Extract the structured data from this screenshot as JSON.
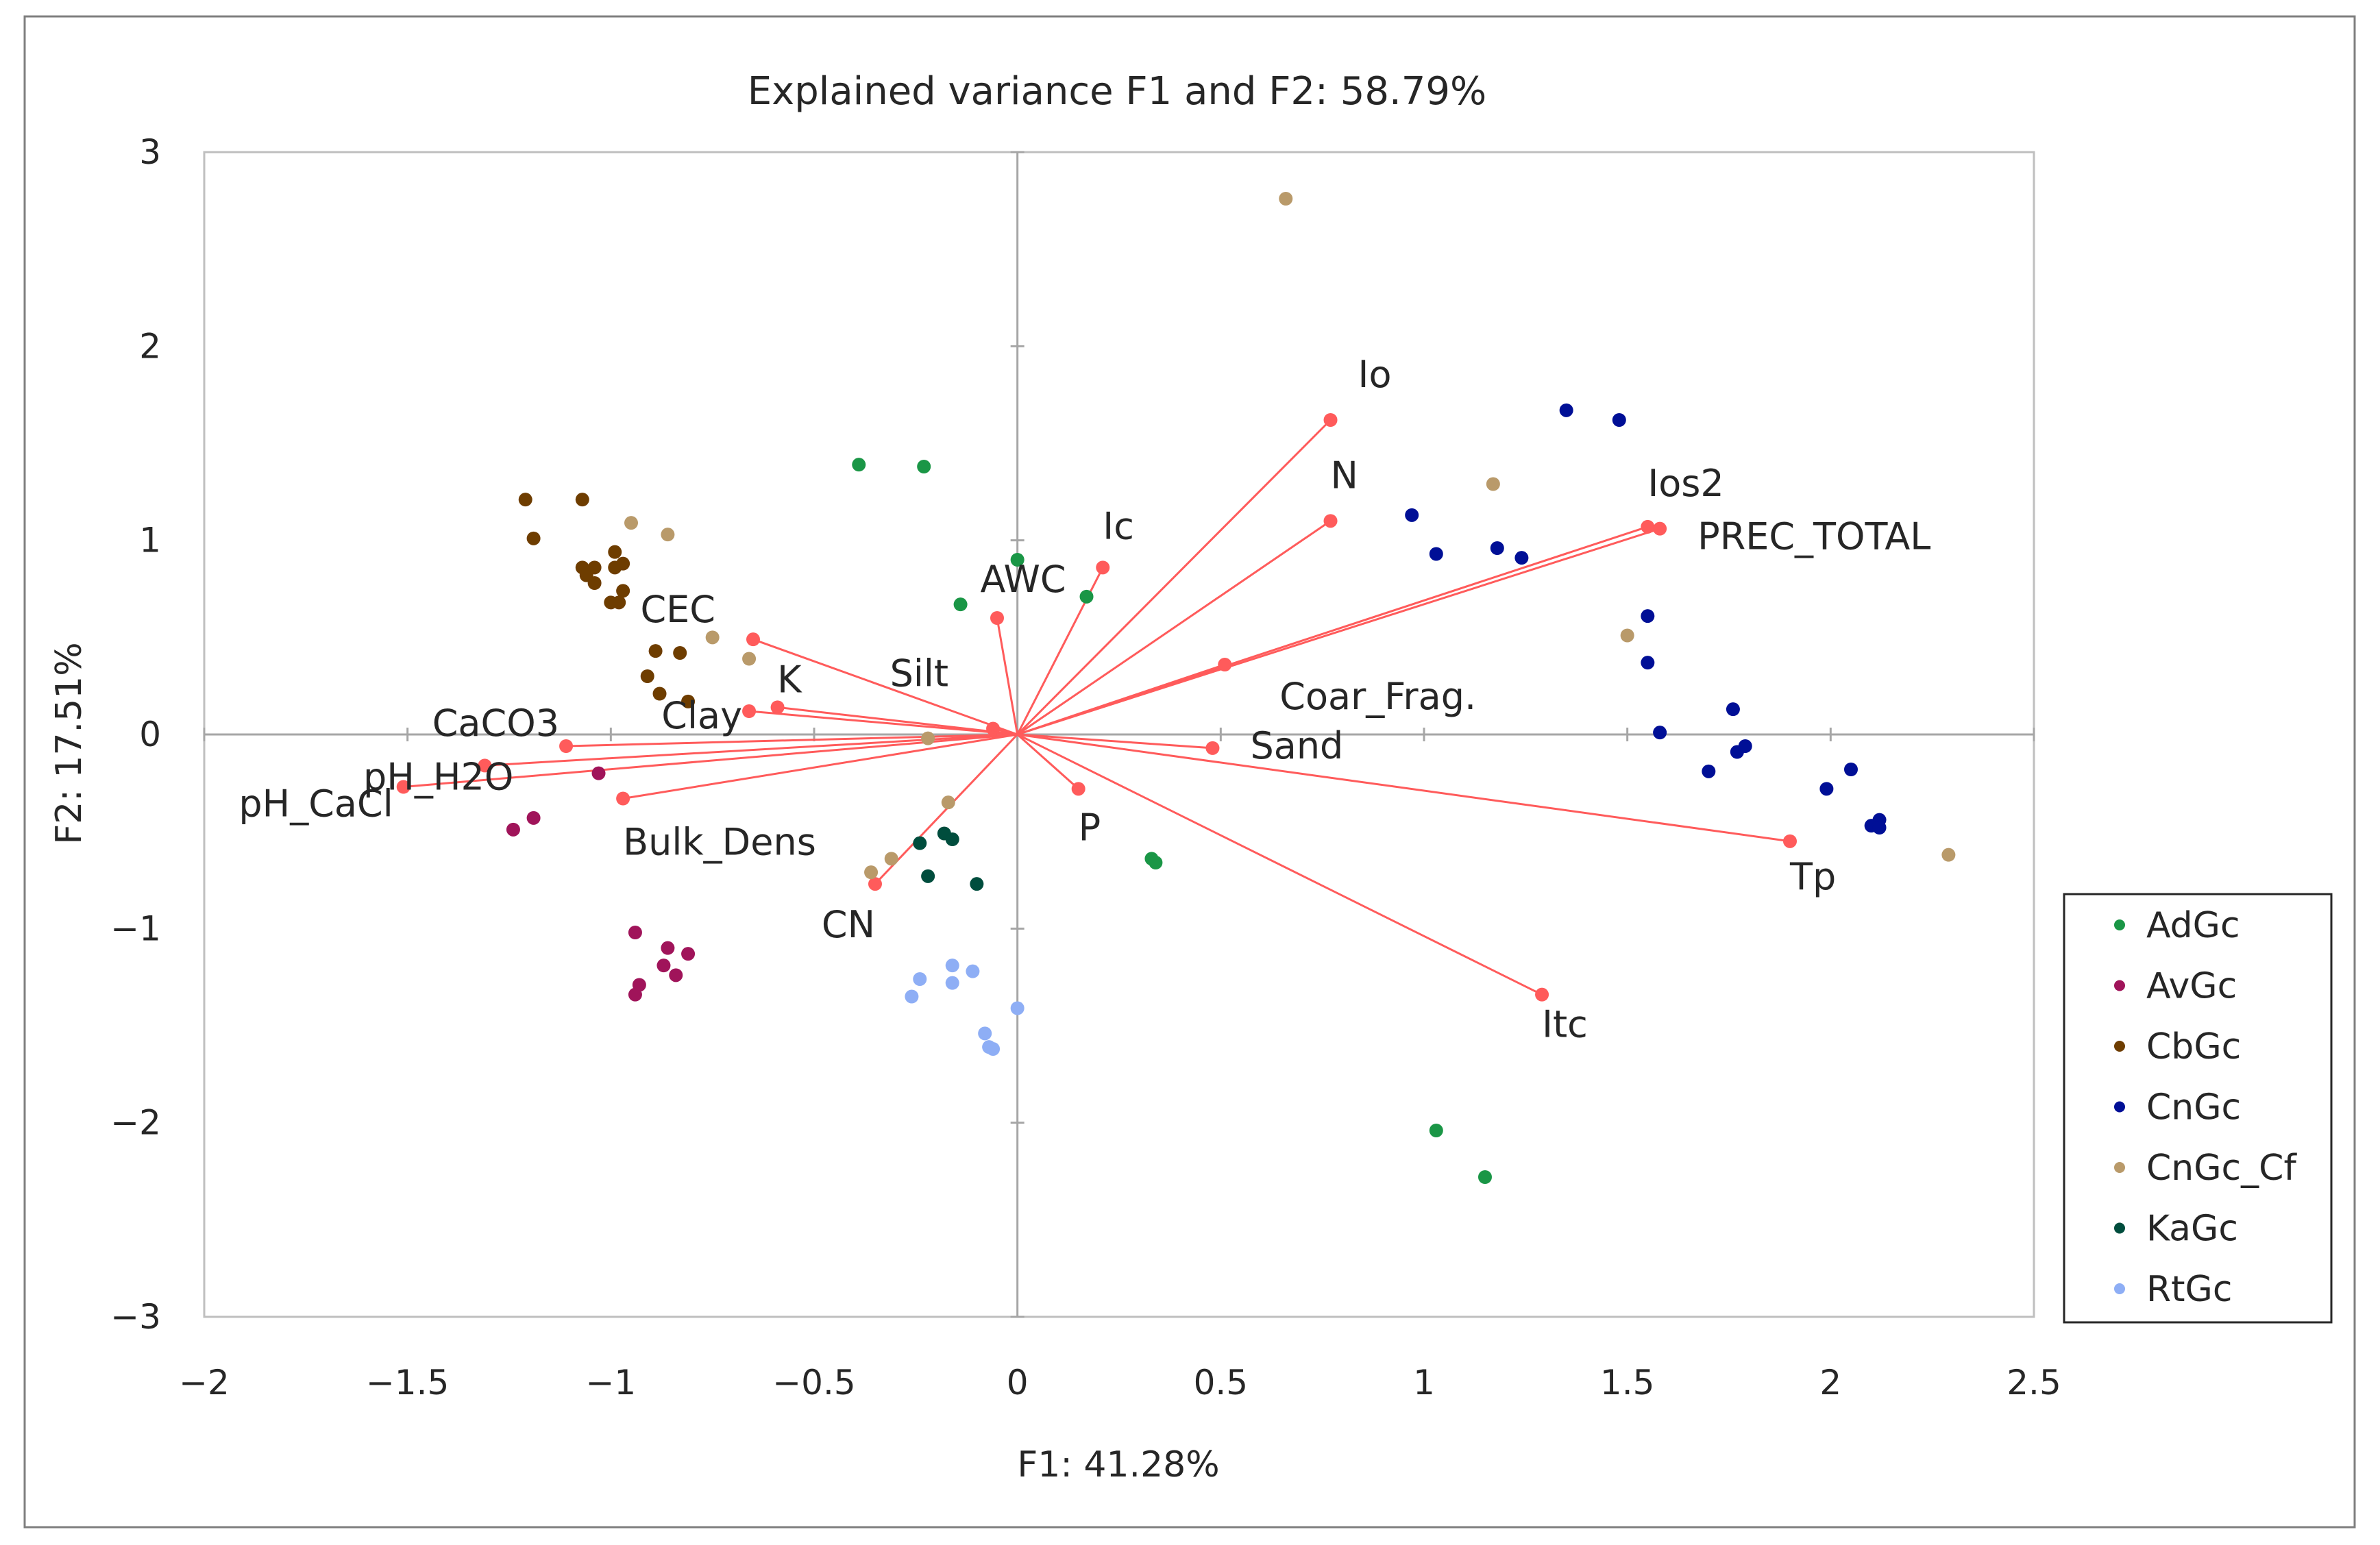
{
  "chart_data": {
    "type": "scatter",
    "title": "Explained variance F1 and F2: 58.79%",
    "xlabel": "F1: 41.28%",
    "ylabel": "F2: 17.51%",
    "xlim": [
      -2,
      2.5
    ],
    "ylim": [
      -3,
      3
    ],
    "xticks": [
      -2,
      -1.5,
      -1,
      -0.5,
      0,
      0.5,
      1,
      1.5,
      2,
      2.5
    ],
    "xtick_labels": [
      "−2",
      "−1.5",
      "−1",
      "−0.5",
      "0",
      "0.5",
      "1",
      "1.5",
      "2",
      "2.5"
    ],
    "yticks": [
      3,
      2,
      1,
      0,
      -1,
      -2,
      -3
    ],
    "ytick_labels": [
      "3",
      "2",
      "1",
      "0",
      "−1",
      "−2",
      "−3"
    ],
    "legend_position": "right",
    "vector_color": "#FF5B5B",
    "variables": [
      {
        "name": "Io",
        "x": 0.77,
        "y": 1.62
      },
      {
        "name": "N",
        "x": 0.77,
        "y": 1.1
      },
      {
        "name": "Ios2",
        "x": 1.55,
        "y": 1.07
      },
      {
        "name": "PREC_TOTAL",
        "x": 1.58,
        "y": 1.06
      },
      {
        "name": "Ic",
        "x": 0.21,
        "y": 0.86
      },
      {
        "name": "AWC",
        "x": -0.05,
        "y": 0.6
      },
      {
        "name": "Coar_Frag.",
        "x": 0.51,
        "y": 0.36
      },
      {
        "name": "CEC",
        "x": -0.65,
        "y": 0.49
      },
      {
        "name": "Silt",
        "x": -0.06,
        "y": 0.03
      },
      {
        "name": "K",
        "x": -0.59,
        "y": 0.14
      },
      {
        "name": "Clay",
        "x": -0.66,
        "y": 0.12
      },
      {
        "name": "CaCO3",
        "x": -1.11,
        "y": -0.06
      },
      {
        "name": "pH_H2O",
        "x": -1.31,
        "y": -0.16
      },
      {
        "name": "pH_CaCl",
        "x": -1.51,
        "y": -0.27
      },
      {
        "name": "Bulk_Dens",
        "x": -0.97,
        "y": -0.33
      },
      {
        "name": "Sand",
        "x": 0.48,
        "y": -0.07
      },
      {
        "name": "P",
        "x": 0.15,
        "y": -0.28
      },
      {
        "name": "CN",
        "x": -0.35,
        "y": -0.77
      },
      {
        "name": "Tp",
        "x": 1.9,
        "y": -0.55
      },
      {
        "name": "Itc",
        "x": 1.29,
        "y": -1.34
      }
    ],
    "series": [
      {
        "name": "AdGc",
        "color": "#1A9646",
        "points": [
          [
            -0.39,
            1.39
          ],
          [
            -0.23,
            1.38
          ],
          [
            -0.14,
            0.67
          ],
          [
            0.0,
            0.9
          ],
          [
            0.17,
            0.71
          ],
          [
            0.33,
            -0.64
          ],
          [
            0.34,
            -0.66
          ],
          [
            1.03,
            -2.04
          ],
          [
            1.15,
            -2.28
          ]
        ]
      },
      {
        "name": "AvGc",
        "color": "#A0145A",
        "points": [
          [
            -1.24,
            -0.49
          ],
          [
            -1.19,
            -0.43
          ],
          [
            -1.03,
            -0.2
          ],
          [
            -0.94,
            -1.02
          ],
          [
            -0.86,
            -1.1
          ],
          [
            -0.81,
            -1.13
          ],
          [
            -0.87,
            -1.19
          ],
          [
            -0.84,
            -1.24
          ],
          [
            -0.93,
            -1.29
          ],
          [
            -0.94,
            -1.34
          ]
        ]
      },
      {
        "name": "CbGc",
        "color": "#6E3D00",
        "points": [
          [
            -1.21,
            1.21
          ],
          [
            -1.07,
            1.21
          ],
          [
            -1.19,
            1.01
          ],
          [
            -0.99,
            0.94
          ],
          [
            -1.07,
            0.86
          ],
          [
            -1.04,
            0.86
          ],
          [
            -0.99,
            0.86
          ],
          [
            -0.97,
            0.88
          ],
          [
            -1.06,
            0.82
          ],
          [
            -1.04,
            0.78
          ],
          [
            -0.97,
            0.74
          ],
          [
            -0.98,
            0.68
          ],
          [
            -1.0,
            0.68
          ],
          [
            -0.89,
            0.43
          ],
          [
            -0.83,
            0.42
          ],
          [
            -0.91,
            0.3
          ],
          [
            -0.88,
            0.21
          ],
          [
            -0.81,
            0.17
          ]
        ]
      },
      {
        "name": "CnGc",
        "color": "#000F96",
        "points": [
          [
            1.35,
            1.67
          ],
          [
            1.48,
            1.62
          ],
          [
            0.97,
            1.13
          ],
          [
            1.03,
            0.93
          ],
          [
            1.18,
            0.96
          ],
          [
            1.24,
            0.91
          ],
          [
            1.55,
            0.61
          ],
          [
            1.55,
            0.37
          ],
          [
            1.58,
            0.01
          ],
          [
            1.76,
            0.13
          ],
          [
            1.77,
            -0.09
          ],
          [
            1.79,
            -0.06
          ],
          [
            1.7,
            -0.19
          ],
          [
            2.05,
            -0.18
          ],
          [
            1.99,
            -0.28
          ],
          [
            2.1,
            -0.47
          ],
          [
            2.12,
            -0.44
          ],
          [
            2.12,
            -0.48
          ]
        ]
      },
      {
        "name": "CnGc_Cf",
        "color": "#B99A6A",
        "points": [
          [
            0.66,
            2.76
          ],
          [
            -0.95,
            1.09
          ],
          [
            -0.86,
            1.03
          ],
          [
            -0.75,
            0.5
          ],
          [
            -0.66,
            0.39
          ],
          [
            1.17,
            1.29
          ],
          [
            1.5,
            0.51
          ],
          [
            2.29,
            -0.62
          ],
          [
            -0.22,
            -0.02
          ],
          [
            -0.17,
            -0.35
          ],
          [
            -0.31,
            -0.64
          ],
          [
            -0.36,
            -0.71
          ]
        ]
      },
      {
        "name": "KaGc",
        "color": "#004D3D",
        "points": [
          [
            -0.24,
            -0.56
          ],
          [
            -0.18,
            -0.51
          ],
          [
            -0.16,
            -0.54
          ],
          [
            -0.22,
            -0.73
          ],
          [
            -0.1,
            -0.77
          ]
        ]
      },
      {
        "name": "RtGc",
        "color": "#8EAEF5",
        "points": [
          [
            -0.24,
            -1.26
          ],
          [
            -0.16,
            -1.19
          ],
          [
            -0.11,
            -1.22
          ],
          [
            -0.16,
            -1.28
          ],
          [
            -0.26,
            -1.35
          ],
          [
            -0.08,
            -1.54
          ],
          [
            -0.07,
            -1.61
          ],
          [
            -0.06,
            -1.62
          ],
          [
            0.0,
            -1.41
          ]
        ]
      }
    ]
  }
}
